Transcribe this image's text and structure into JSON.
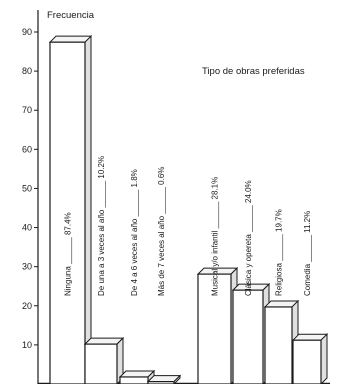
{
  "chart_data": {
    "type": "bar",
    "title": "",
    "ylabel": "Frecuencia",
    "xlabel": "",
    "ylim": [
      0,
      90
    ],
    "yticks": [
      10,
      20,
      30,
      40,
      50,
      60,
      70,
      80,
      90
    ],
    "grid": false,
    "annotation": "Tipo de obras preferidas",
    "categories": [
      "Ninguna",
      "De una a 3 veces al año",
      "De 4 a 6 veces al año",
      "Más de 7 veces al año",
      "Musical y/o infantil",
      "Clásica y opereta",
      "Religiosa",
      "Comedia"
    ],
    "values": [
      87.4,
      10.2,
      1.8,
      0.6,
      28.1,
      24.0,
      19.7,
      11.2
    ],
    "value_labels": [
      "87.4%",
      "10.2%",
      "1.8%",
      "0.6%",
      "28.1%",
      "24.0%",
      "19.7%",
      "11.2%"
    ]
  }
}
